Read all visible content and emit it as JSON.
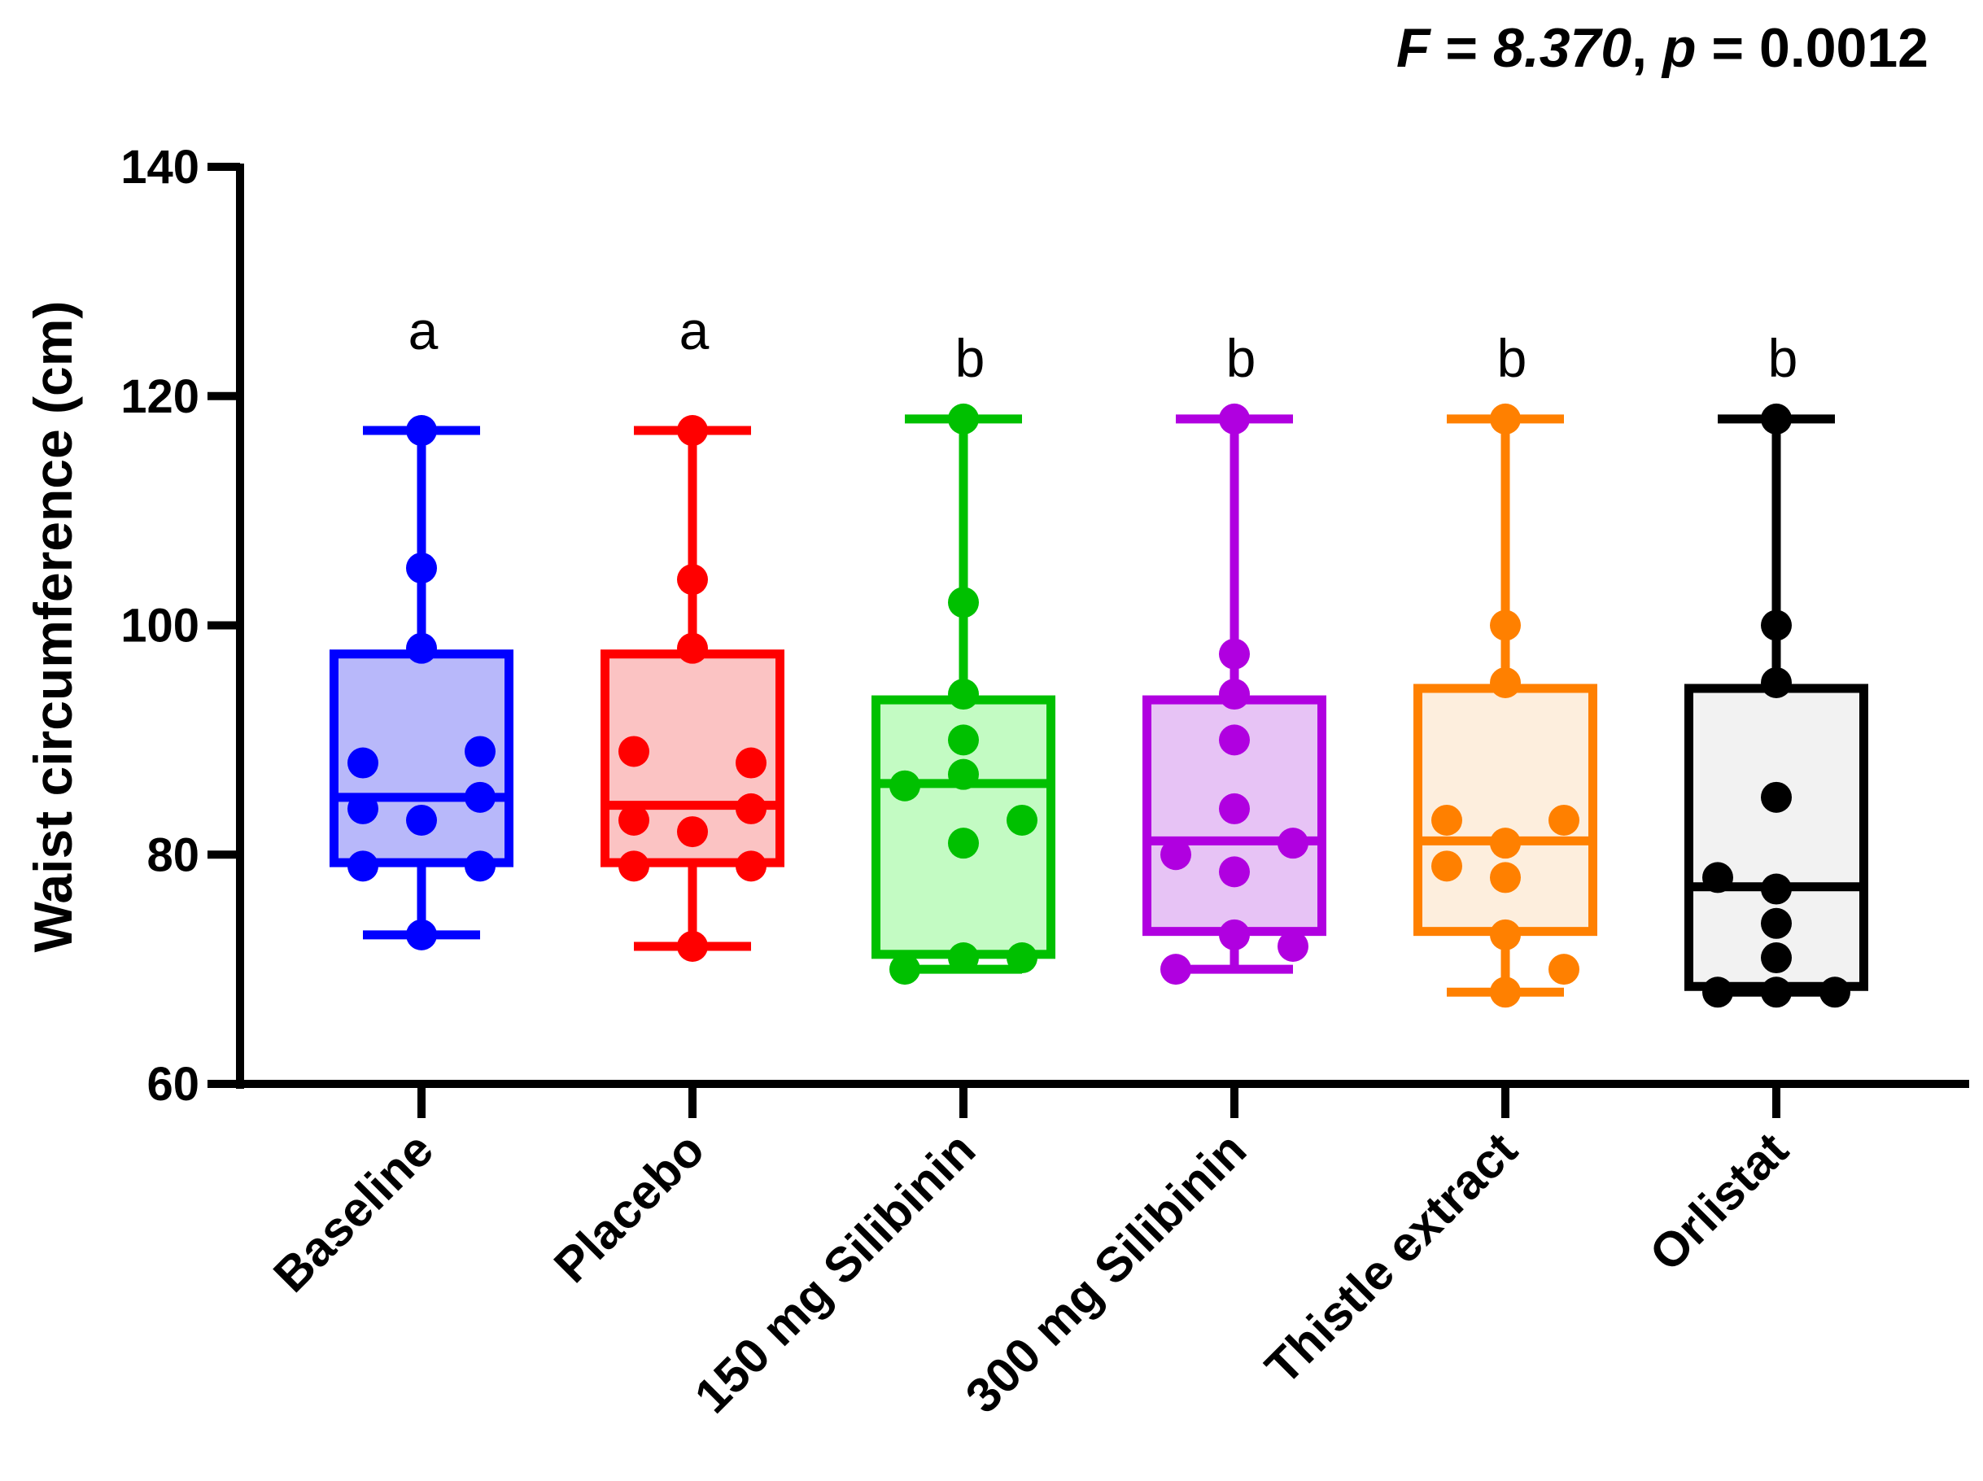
{
  "chart_data": {
    "type": "box",
    "title": "",
    "stat": {
      "f_symbol": "F",
      "f_value": "8.370",
      "p_symbol": "p",
      "p_value": "0.0012"
    },
    "ylabel": "Waist circumference (cm)",
    "xlabel": "",
    "ylim": [
      60,
      140
    ],
    "yticks": [
      60,
      80,
      100,
      120,
      140
    ],
    "ytick_labels": [
      "60",
      "80",
      "100",
      "120",
      "140"
    ],
    "groups": [
      {
        "name": "Baseline",
        "letter": "a",
        "color": "#0000ff",
        "fill": "#b8b8fa",
        "min": 73,
        "q1": 79.3,
        "median": 85,
        "q3": 97.5,
        "max": 117,
        "points": [
          117,
          105,
          98,
          88,
          84,
          89,
          85,
          83,
          79,
          79,
          73
        ],
        "jitter": [
          0,
          0,
          0,
          -1,
          -1,
          1,
          1,
          0,
          -1,
          1,
          0
        ]
      },
      {
        "name": "Placebo",
        "letter": "a",
        "color": "#ff0000",
        "fill": "#fbc3c3",
        "min": 72,
        "q1": 79.3,
        "median": 84.3,
        "q3": 97.5,
        "max": 117,
        "points": [
          117,
          104,
          98,
          89,
          88,
          83,
          84,
          82,
          79,
          79,
          72
        ],
        "jitter": [
          0,
          0,
          0,
          -1,
          1,
          -1,
          1,
          0,
          -1,
          1,
          0
        ]
      },
      {
        "name": "150 mg Silibinin",
        "letter": "b",
        "color": "#00c000",
        "fill": "#c3fbc3",
        "min": 70,
        "q1": 71.3,
        "median": 86.2,
        "q3": 93.5,
        "max": 118,
        "points": [
          118,
          102,
          94,
          90,
          87,
          86,
          83,
          81,
          71,
          71,
          70
        ],
        "jitter": [
          0,
          0,
          0,
          0,
          0,
          -1,
          1,
          0,
          0,
          1,
          -1
        ]
      },
      {
        "name": "300 mg Silibinin",
        "letter": "b",
        "color": "#b000e0",
        "fill": "#e7c3f5",
        "min": 70,
        "q1": 73.3,
        "median": 81.2,
        "q3": 93.5,
        "max": 118,
        "points": [
          118,
          97.5,
          94,
          90,
          84,
          81,
          80,
          78.5,
          73,
          72,
          70
        ],
        "jitter": [
          0,
          0,
          0,
          0,
          0,
          1,
          -1,
          0,
          0,
          1,
          -1
        ]
      },
      {
        "name": "Thistle extract",
        "letter": "b",
        "color": "#ff8000",
        "fill": "#fdeedd",
        "min": 68,
        "q1": 73.3,
        "median": 81.2,
        "q3": 94.5,
        "max": 118,
        "points": [
          118,
          100,
          95,
          83,
          83,
          81,
          79,
          78,
          73,
          70,
          68
        ],
        "jitter": [
          0,
          0,
          0,
          -1,
          1,
          0,
          -1,
          0,
          0,
          1,
          0
        ]
      },
      {
        "name": "Orlistat",
        "letter": "b",
        "color": "#000000",
        "fill": "#f2f2f2",
        "min": 68,
        "q1": 68.5,
        "median": 77.2,
        "q3": 94.5,
        "max": 118,
        "points": [
          118,
          100,
          95,
          85,
          78,
          77,
          74,
          71,
          68,
          68,
          68
        ],
        "jitter": [
          0,
          0,
          0,
          0,
          -1,
          0,
          0,
          0,
          -1,
          0,
          1
        ]
      }
    ]
  }
}
